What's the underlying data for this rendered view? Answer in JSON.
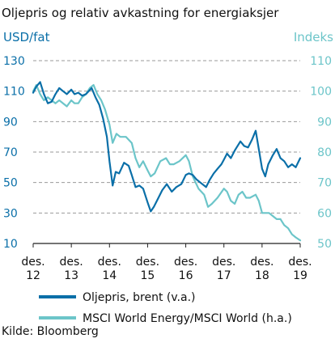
{
  "chart_data": {
    "type": "line",
    "title": "Oljepris og relativ avkastning for energiaksjer",
    "left_axis": {
      "unit_label": "USD/fat",
      "ylim": [
        10,
        130
      ],
      "ticks": [
        10,
        30,
        50,
        70,
        90,
        110,
        130
      ]
    },
    "right_axis": {
      "unit_label": "Indeks",
      "ylim": [
        50,
        110
      ],
      "ticks": [
        50,
        60,
        70,
        80,
        90,
        100,
        110
      ]
    },
    "x_axis": {
      "range": [
        2012.917,
        2019.917
      ],
      "ticks": [
        {
          "x": 2012.917,
          "top": "des.",
          "bottom": "12"
        },
        {
          "x": 2013.917,
          "top": "des.",
          "bottom": "13"
        },
        {
          "x": 2014.917,
          "top": "des.",
          "bottom": "14"
        },
        {
          "x": 2015.917,
          "top": "des.",
          "bottom": "15"
        },
        {
          "x": 2016.917,
          "top": "des.",
          "bottom": "16"
        },
        {
          "x": 2017.917,
          "top": "des.",
          "bottom": "17"
        },
        {
          "x": 2018.917,
          "top": "des.",
          "bottom": "18"
        },
        {
          "x": 2019.917,
          "top": "des.",
          "bottom": "19"
        }
      ]
    },
    "grid": {
      "horizontal": true,
      "style": "dashed"
    },
    "legend_placement": "bottom",
    "series": [
      {
        "name": "Oljepris, brent (v.a.)",
        "axis": "left",
        "color": "#0a6fa8",
        "points": [
          [
            2012.917,
            109
          ],
          [
            2013.0,
            113
          ],
          [
            2013.1,
            116
          ],
          [
            2013.2,
            108
          ],
          [
            2013.3,
            102
          ],
          [
            2013.4,
            103
          ],
          [
            2013.5,
            108
          ],
          [
            2013.6,
            112
          ],
          [
            2013.7,
            110
          ],
          [
            2013.8,
            108
          ],
          [
            2013.917,
            111
          ],
          [
            2014.0,
            108
          ],
          [
            2014.1,
            109
          ],
          [
            2014.2,
            107
          ],
          [
            2014.3,
            108
          ],
          [
            2014.45,
            112
          ],
          [
            2014.55,
            106
          ],
          [
            2014.65,
            101
          ],
          [
            2014.75,
            92
          ],
          [
            2014.85,
            80
          ],
          [
            2014.917,
            64
          ],
          [
            2015.0,
            48
          ],
          [
            2015.08,
            57
          ],
          [
            2015.17,
            56
          ],
          [
            2015.3,
            63
          ],
          [
            2015.42,
            61
          ],
          [
            2015.5,
            55
          ],
          [
            2015.6,
            47
          ],
          [
            2015.7,
            48
          ],
          [
            2015.8,
            46
          ],
          [
            2015.917,
            37
          ],
          [
            2016.0,
            31
          ],
          [
            2016.08,
            34
          ],
          [
            2016.2,
            40
          ],
          [
            2016.3,
            45
          ],
          [
            2016.42,
            49
          ],
          [
            2016.55,
            44
          ],
          [
            2016.67,
            47
          ],
          [
            2016.8,
            49
          ],
          [
            2016.917,
            55
          ],
          [
            2017.0,
            56
          ],
          [
            2017.1,
            55
          ],
          [
            2017.2,
            52
          ],
          [
            2017.3,
            50
          ],
          [
            2017.45,
            47
          ],
          [
            2017.55,
            52
          ],
          [
            2017.65,
            56
          ],
          [
            2017.75,
            59
          ],
          [
            2017.85,
            62
          ],
          [
            2017.917,
            65
          ],
          [
            2018.0,
            69
          ],
          [
            2018.1,
            66
          ],
          [
            2018.2,
            71
          ],
          [
            2018.35,
            77
          ],
          [
            2018.45,
            74
          ],
          [
            2018.55,
            73
          ],
          [
            2018.65,
            78
          ],
          [
            2018.75,
            84
          ],
          [
            2018.83,
            72
          ],
          [
            2018.917,
            59
          ],
          [
            2019.0,
            54
          ],
          [
            2019.08,
            62
          ],
          [
            2019.2,
            68
          ],
          [
            2019.3,
            72
          ],
          [
            2019.4,
            66
          ],
          [
            2019.5,
            64
          ],
          [
            2019.6,
            60
          ],
          [
            2019.7,
            62
          ],
          [
            2019.8,
            60
          ],
          [
            2019.917,
            66
          ]
        ]
      },
      {
        "name": "MSCI World Energy/MSCI World (h.a.)",
        "axis": "right",
        "color": "#6cc5c9",
        "points": [
          [
            2012.917,
            100
          ],
          [
            2013.0,
            102
          ],
          [
            2013.1,
            99
          ],
          [
            2013.2,
            97
          ],
          [
            2013.3,
            98
          ],
          [
            2013.4,
            97
          ],
          [
            2013.5,
            96
          ],
          [
            2013.6,
            97
          ],
          [
            2013.7,
            96
          ],
          [
            2013.8,
            95
          ],
          [
            2013.917,
            97
          ],
          [
            2014.0,
            96
          ],
          [
            2014.1,
            96
          ],
          [
            2014.2,
            98
          ],
          [
            2014.3,
            99
          ],
          [
            2014.4,
            101
          ],
          [
            2014.5,
            102
          ],
          [
            2014.6,
            99
          ],
          [
            2014.7,
            97
          ],
          [
            2014.8,
            94
          ],
          [
            2014.917,
            89
          ],
          [
            2015.0,
            83
          ],
          [
            2015.1,
            86
          ],
          [
            2015.2,
            85
          ],
          [
            2015.35,
            85
          ],
          [
            2015.5,
            83
          ],
          [
            2015.6,
            78
          ],
          [
            2015.7,
            75
          ],
          [
            2015.8,
            77
          ],
          [
            2015.917,
            74
          ],
          [
            2016.0,
            72
          ],
          [
            2016.1,
            73
          ],
          [
            2016.25,
            77
          ],
          [
            2016.4,
            78
          ],
          [
            2016.5,
            76
          ],
          [
            2016.6,
            76
          ],
          [
            2016.75,
            77
          ],
          [
            2016.917,
            79
          ],
          [
            2017.0,
            77
          ],
          [
            2017.1,
            72
          ],
          [
            2017.25,
            68
          ],
          [
            2017.4,
            66
          ],
          [
            2017.5,
            62
          ],
          [
            2017.6,
            63
          ],
          [
            2017.75,
            65
          ],
          [
            2017.917,
            68
          ],
          [
            2018.0,
            67
          ],
          [
            2018.1,
            64
          ],
          [
            2018.2,
            63
          ],
          [
            2018.3,
            66
          ],
          [
            2018.4,
            67
          ],
          [
            2018.5,
            65
          ],
          [
            2018.6,
            65
          ],
          [
            2018.75,
            66
          ],
          [
            2018.83,
            64
          ],
          [
            2018.917,
            60
          ],
          [
            2019.0,
            60
          ],
          [
            2019.1,
            60
          ],
          [
            2019.2,
            59
          ],
          [
            2019.3,
            58
          ],
          [
            2019.4,
            58
          ],
          [
            2019.5,
            56
          ],
          [
            2019.6,
            55
          ],
          [
            2019.7,
            53
          ],
          [
            2019.8,
            52
          ],
          [
            2019.917,
            51
          ]
        ]
      }
    ],
    "source": "Kilde: Bloomberg"
  }
}
